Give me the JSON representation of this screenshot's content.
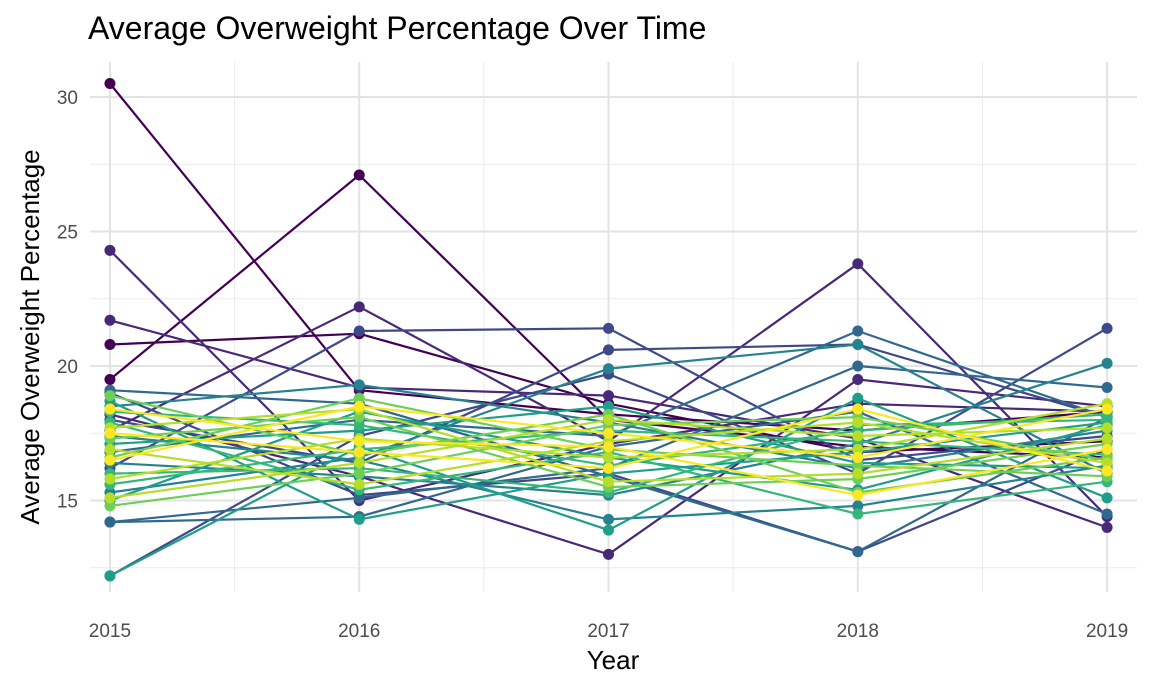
{
  "chart_data": {
    "type": "line",
    "title": "Average Overweight Percentage Over Time",
    "xlabel": "Year",
    "ylabel": "Average Overweight Percentage",
    "x": [
      2015,
      2016,
      2017,
      2018,
      2019
    ],
    "x_ticks": [
      "2015",
      "2016",
      "2017",
      "2018",
      "2019"
    ],
    "y_ticks": [
      15,
      20,
      25,
      30
    ],
    "xlim": [
      2014.92,
      2019.12
    ],
    "ylim": [
      11.6,
      31.3
    ],
    "grid": true,
    "legend": "none",
    "palette": [
      "#440154",
      "#482878",
      "#3e4989",
      "#31688e",
      "#26828e",
      "#1f9e89",
      "#35b779",
      "#6ece58",
      "#b5de2b",
      "#fde725"
    ],
    "series": [
      {
        "values": [
          30.5,
          19.1,
          18.2,
          17.6,
          18.3
        ]
      },
      {
        "values": [
          19.5,
          27.1,
          18.0,
          17.0,
          16.6
        ]
      },
      {
        "values": [
          20.8,
          21.2,
          18.6,
          16.8,
          17.2
        ]
      },
      {
        "values": [
          21.7,
          19.2,
          18.9,
          17.3,
          14.0
        ]
      },
      {
        "values": [
          24.3,
          15.0,
          17.1,
          18.6,
          18.3
        ]
      },
      {
        "values": [
          17.6,
          22.2,
          17.2,
          23.8,
          14.4
        ]
      },
      {
        "values": [
          18.2,
          15.9,
          13.0,
          19.5,
          18.5
        ]
      },
      {
        "values": [
          18.0,
          16.4,
          20.6,
          20.8,
          18.1
        ]
      },
      {
        "values": [
          12.2,
          17.4,
          19.7,
          16.0,
          21.4
        ]
      },
      {
        "values": [
          19.0,
          15.2,
          16.0,
          13.1,
          16.9
        ]
      },
      {
        "values": [
          16.2,
          21.3,
          21.4,
          16.5,
          17.4
        ]
      },
      {
        "values": [
          14.2,
          15.1,
          16.2,
          20.0,
          19.2
        ]
      },
      {
        "values": [
          16.8,
          18.0,
          17.4,
          21.3,
          18.1
        ]
      },
      {
        "values": [
          14.2,
          14.4,
          17.0,
          18.3,
          14.5
        ]
      },
      {
        "values": [
          19.1,
          18.6,
          15.9,
          13.1,
          18.1
        ]
      },
      {
        "values": [
          15.3,
          16.6,
          19.9,
          20.8,
          16.0
        ]
      },
      {
        "values": [
          18.5,
          19.3,
          17.9,
          16.2,
          17.6
        ]
      },
      {
        "values": [
          17.4,
          16.5,
          14.3,
          14.8,
          16.3
        ]
      },
      {
        "values": [
          16.4,
          15.9,
          15.2,
          17.1,
          20.1
        ]
      },
      {
        "values": [
          12.2,
          17.0,
          13.9,
          18.8,
          15.1
        ]
      },
      {
        "values": [
          18.7,
          14.3,
          16.0,
          16.8,
          17.9
        ]
      },
      {
        "values": [
          15.0,
          18.3,
          16.6,
          15.4,
          17.8
        ]
      },
      {
        "values": [
          17.1,
          17.6,
          18.5,
          16.4,
          16.2
        ]
      },
      {
        "values": [
          16.0,
          16.2,
          15.3,
          17.8,
          18.0
        ]
      },
      {
        "values": [
          17.9,
          15.4,
          16.8,
          14.5,
          15.7
        ]
      },
      {
        "values": [
          15.6,
          16.9,
          17.6,
          17.2,
          16.7
        ]
      },
      {
        "values": [
          18.3,
          17.8,
          16.3,
          17.6,
          18.2
        ]
      },
      {
        "values": [
          16.6,
          18.8,
          16.9,
          16.3,
          15.9
        ]
      },
      {
        "values": [
          14.8,
          16.0,
          17.8,
          18.1,
          16.5
        ]
      },
      {
        "values": [
          17.3,
          18.1,
          15.5,
          15.8,
          17.1
        ]
      },
      {
        "values": [
          18.9,
          16.7,
          18.2,
          15.3,
          16.6
        ]
      },
      {
        "values": [
          15.8,
          17.3,
          16.6,
          16.9,
          18.6
        ]
      },
      {
        "values": [
          16.9,
          15.6,
          17.2,
          17.9,
          16.4
        ]
      },
      {
        "values": [
          17.7,
          18.4,
          15.7,
          16.0,
          17.3
        ]
      },
      {
        "values": [
          15.1,
          16.4,
          18.0,
          17.4,
          17.7
        ]
      },
      {
        "values": [
          17.5,
          16.8,
          16.2,
          18.4,
          16.1
        ]
      },
      {
        "values": [
          16.5,
          18.5,
          17.5,
          16.6,
          18.4
        ]
      },
      {
        "values": [
          18.4,
          17.2,
          17.0,
          15.2,
          16.9
        ]
      }
    ]
  }
}
